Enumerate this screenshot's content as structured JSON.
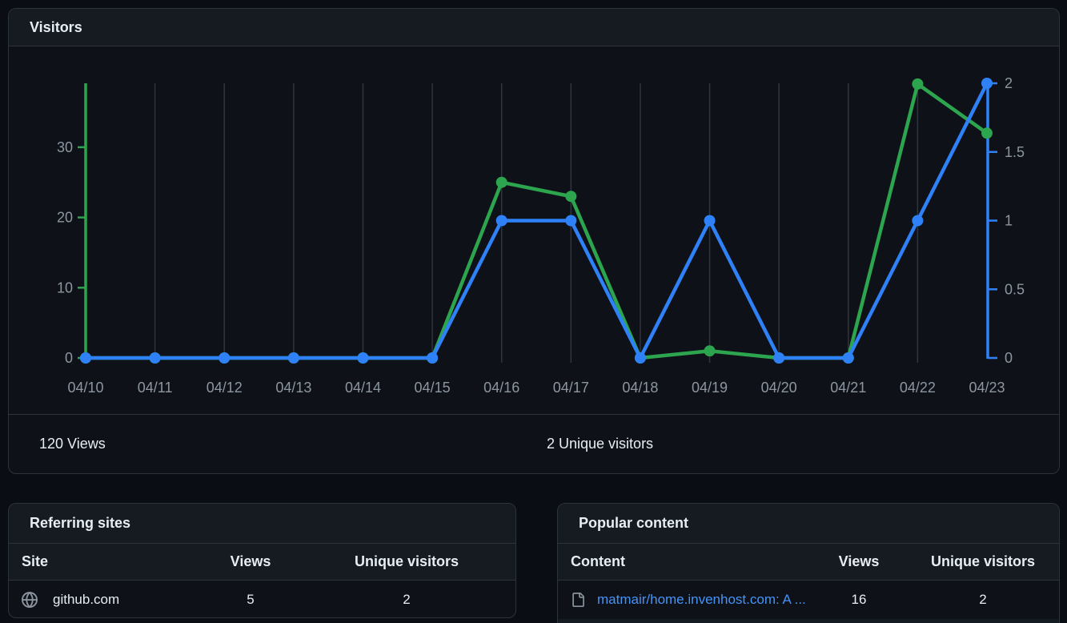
{
  "visitors": {
    "title": "Visitors",
    "total_views": "120 Views",
    "total_unique": "2 Unique visitors"
  },
  "chart_data": {
    "type": "line",
    "title": "Visitors",
    "categories": [
      "04/10",
      "04/11",
      "04/12",
      "04/13",
      "04/14",
      "04/15",
      "04/16",
      "04/17",
      "04/18",
      "04/19",
      "04/20",
      "04/21",
      "04/22",
      "04/23"
    ],
    "series": [
      {
        "name": "Views",
        "axis": "left",
        "color": "#2da44e",
        "values": [
          0,
          0,
          0,
          0,
          0,
          0,
          25,
          23,
          0,
          1,
          0,
          0,
          39,
          32
        ]
      },
      {
        "name": "Unique visitors",
        "axis": "right",
        "color": "#2f81f7",
        "values": [
          0,
          0,
          0,
          0,
          0,
          0,
          1,
          1,
          0,
          1,
          0,
          0,
          1,
          2
        ]
      }
    ],
    "left_axis": {
      "label": "Views",
      "ticks": [
        0,
        10,
        20,
        30
      ],
      "max": 39.1,
      "color": "#2da44e"
    },
    "right_axis": {
      "label": "Unique visitors",
      "ticks": [
        0,
        0.5,
        1,
        1.5,
        2
      ],
      "max": 2,
      "color": "#2f81f7"
    },
    "grid": "vertical",
    "gridline_color": "#2f353c",
    "tick_label_color": "#8d96a0",
    "legend_position": "none"
  },
  "referring_sites": {
    "title": "Referring sites",
    "columns": [
      "Site",
      "Views",
      "Unique visitors"
    ],
    "rows": [
      {
        "icon": "globe-icon",
        "site": "github.com",
        "views": "5",
        "unique": "2"
      }
    ]
  },
  "popular_content": {
    "title": "Popular content",
    "columns": [
      "Content",
      "Views",
      "Unique visitors"
    ],
    "rows": [
      {
        "icon": "file-icon",
        "content": "matmair/home.invenhost.com: A ...",
        "views": "16",
        "unique": "2"
      }
    ]
  },
  "colors": {
    "accent_blue": "#2f81f7",
    "green": "#2da44e",
    "link_blue": "#4493f8"
  }
}
